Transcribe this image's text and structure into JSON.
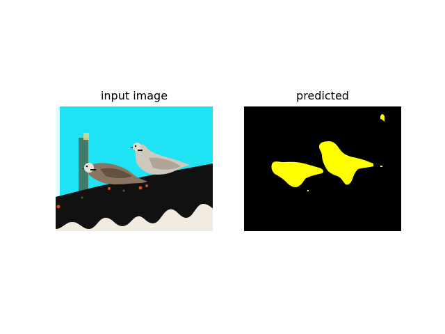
{
  "figure": {
    "panels": [
      {
        "title": "input image"
      },
      {
        "title": "predicted"
      }
    ]
  },
  "colors": {
    "background": "#ffffff",
    "sky": "#1fe3f5",
    "roof_dark": "#111111",
    "mask_background": "#000000",
    "mask_foreground": "#ffff00"
  }
}
